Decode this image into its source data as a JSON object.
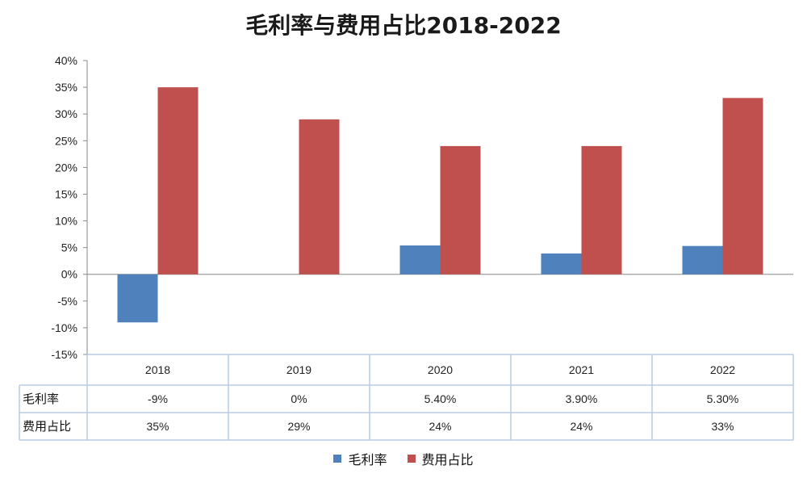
{
  "chart_data": {
    "type": "bar",
    "title": "毛利率与费用占比2018-2022",
    "categories": [
      "2018",
      "2019",
      "2020",
      "2021",
      "2022"
    ],
    "series": [
      {
        "name": "毛利率",
        "values": [
          -9,
          0,
          5.4,
          3.9,
          5.3
        ],
        "color": "#4f81bd",
        "table_labels": [
          "-9%",
          "0%",
          "5.40%",
          "3.90%",
          "5.30%"
        ]
      },
      {
        "name": "费用占比",
        "values": [
          35,
          29,
          24,
          24,
          33
        ],
        "color": "#c0504d",
        "table_labels": [
          "35%",
          "29%",
          "24%",
          "24%",
          "33%"
        ]
      }
    ],
    "yticks": [
      "40%",
      "35%",
      "30%",
      "25%",
      "20%",
      "15%",
      "10%",
      "5%",
      "0%",
      "-5%",
      "-10%",
      "-15%"
    ],
    "ylim": [
      -15,
      40
    ],
    "legend": "bottom",
    "data_table": true
  }
}
